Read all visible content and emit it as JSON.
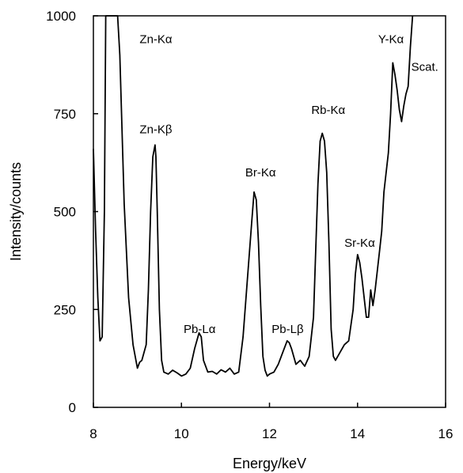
{
  "chart_data": {
    "type": "line",
    "title": "",
    "xlabel": "Energy/keV",
    "ylabel": "Intensity/counts",
    "xlim": [
      8,
      16
    ],
    "ylim": [
      0,
      1000
    ],
    "xticks": [
      "8",
      "10",
      "12",
      "14",
      "16"
    ],
    "yticks": [
      "0",
      "250",
      "500",
      "750",
      "1000"
    ],
    "grid": false,
    "series": [
      {
        "x": [
          8.0,
          8.05,
          8.1,
          8.15,
          8.2,
          8.25,
          8.28,
          8.3,
          8.35,
          8.4,
          8.5,
          8.55,
          8.6,
          8.7,
          8.8,
          8.9,
          9.0,
          9.05,
          9.1,
          9.2,
          9.25,
          9.3,
          9.35,
          9.4,
          9.42,
          9.45,
          9.5,
          9.55,
          9.6,
          9.7,
          9.8,
          9.9,
          10.0,
          10.1,
          10.2,
          10.3,
          10.4,
          10.45,
          10.5,
          10.6,
          10.7,
          10.8,
          10.9,
          11.0,
          11.1,
          11.2,
          11.3,
          11.4,
          11.5,
          11.6,
          11.65,
          11.7,
          11.75,
          11.8,
          11.85,
          11.9,
          11.95,
          12.0,
          12.1,
          12.2,
          12.3,
          12.4,
          12.45,
          12.5,
          12.55,
          12.6,
          12.7,
          12.8,
          12.9,
          13.0,
          13.05,
          13.1,
          13.15,
          13.2,
          13.25,
          13.3,
          13.35,
          13.4,
          13.45,
          13.5,
          13.6,
          13.7,
          13.8,
          13.9,
          13.95,
          14.0,
          14.05,
          14.1,
          14.15,
          14.2,
          14.25,
          14.3,
          14.35,
          14.4,
          14.45,
          14.5,
          14.55,
          14.6,
          14.65,
          14.7,
          14.75,
          14.8,
          14.85,
          14.9,
          14.95,
          15.0,
          15.05,
          15.1,
          15.15,
          15.2,
          15.25
        ],
        "y": [
          660,
          450,
          280,
          170,
          180,
          500,
          1000,
          1000,
          1000,
          1000,
          1000,
          1000,
          900,
          520,
          280,
          160,
          100,
          115,
          120,
          160,
          300,
          500,
          640,
          670,
          640,
          500,
          250,
          120,
          90,
          85,
          95,
          88,
          80,
          85,
          100,
          150,
          190,
          180,
          120,
          90,
          92,
          85,
          96,
          90,
          100,
          85,
          90,
          180,
          330,
          480,
          550,
          530,
          420,
          260,
          130,
          95,
          80,
          85,
          90,
          110,
          140,
          170,
          165,
          150,
          130,
          110,
          120,
          105,
          130,
          230,
          400,
          570,
          680,
          700,
          680,
          600,
          420,
          200,
          130,
          120,
          140,
          160,
          170,
          250,
          340,
          390,
          370,
          330,
          280,
          230,
          230,
          300,
          260,
          300,
          350,
          400,
          450,
          550,
          600,
          650,
          750,
          880,
          850,
          810,
          760,
          730,
          770,
          800,
          820,
          920,
          1000
        ]
      }
    ],
    "annotations": [
      {
        "text": "Zn-Kα",
        "x": 9.05,
        "y": 930
      },
      {
        "text": "Zn-Kβ",
        "x": 9.05,
        "y": 700
      },
      {
        "text": "Pb-Lα",
        "x": 10.05,
        "y": 190
      },
      {
        "text": "Br-Kα",
        "x": 11.45,
        "y": 590
      },
      {
        "text": "Pb-Lβ",
        "x": 12.05,
        "y": 190
      },
      {
        "text": "Rb-Kα",
        "x": 12.95,
        "y": 750
      },
      {
        "text": "Sr-Kα",
        "x": 13.7,
        "y": 410
      },
      {
        "text": "Y-Kα",
        "x": 14.47,
        "y": 930
      },
      {
        "text": "Scat.",
        "x": 15.22,
        "y": 860
      }
    ]
  }
}
